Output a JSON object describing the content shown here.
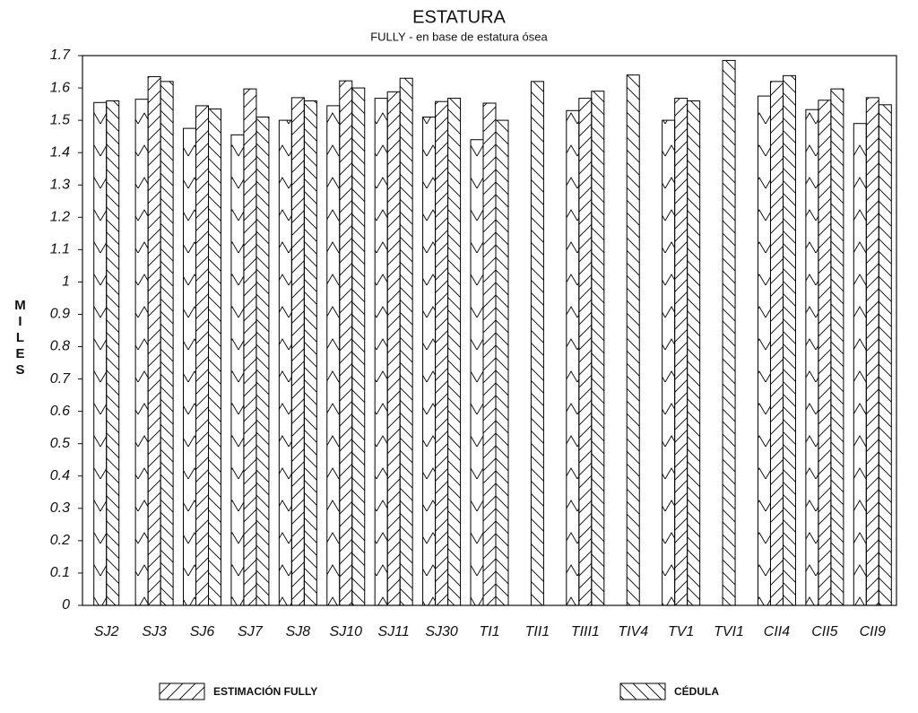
{
  "chart_data": {
    "type": "bar",
    "title": "ESTATURA",
    "subtitle": "FULLY - en base de estatura ósea",
    "y_label": "MILES",
    "categories": [
      "SJ2",
      "SJ3",
      "SJ6",
      "SJ7",
      "SJ8",
      "SJ10",
      "SJ11",
      "SJ30",
      "TI1",
      "TII1",
      "TIII1",
      "TIV4",
      "TV1",
      "TVI1",
      "CII4",
      "CII5",
      "CII9"
    ],
    "series": [
      {
        "pattern": "chevron",
        "color": "#000000",
        "values": [
          1.555,
          1.565,
          1.475,
          1.455,
          1.5,
          1.545,
          1.568,
          1.51,
          1.44,
          null,
          1.53,
          null,
          1.5,
          null,
          1.575,
          1.533,
          1.49
        ]
      },
      {
        "name": "ESTIMACIÓN FULLY",
        "pattern": "forward",
        "color": "#000000",
        "values": [
          null,
          1.635,
          1.545,
          1.597,
          1.57,
          1.622,
          1.588,
          1.558,
          1.553,
          null,
          1.568,
          null,
          1.568,
          null,
          1.62,
          1.562,
          1.57
        ]
      },
      {
        "name": "CÉDULA",
        "pattern": "backward",
        "color": "#000000",
        "values": [
          1.56,
          1.62,
          1.535,
          1.51,
          1.56,
          1.6,
          1.63,
          1.568,
          1.5,
          1.62,
          1.59,
          1.64,
          1.56,
          1.685,
          1.638,
          1.597,
          1.548
        ]
      }
    ],
    "ylim": [
      0,
      1.7
    ],
    "yticks": [
      0,
      0.1,
      0.2,
      0.3,
      0.4,
      0.5,
      0.6,
      0.7,
      0.8,
      0.9,
      1,
      1.1,
      1.2,
      1.3,
      1.4,
      1.5,
      1.6,
      1.7
    ]
  }
}
